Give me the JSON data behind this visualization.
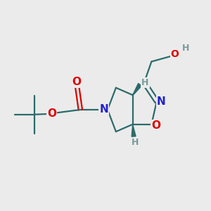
{
  "bg_color": "#ebebeb",
  "bond_color": "#2d6b6b",
  "atom_colors": {
    "N": "#2222cc",
    "O": "#dd0000",
    "O_ring": "#dd0000",
    "H": "#7a9a9a"
  },
  "lw": 1.6,
  "font_size": 10
}
